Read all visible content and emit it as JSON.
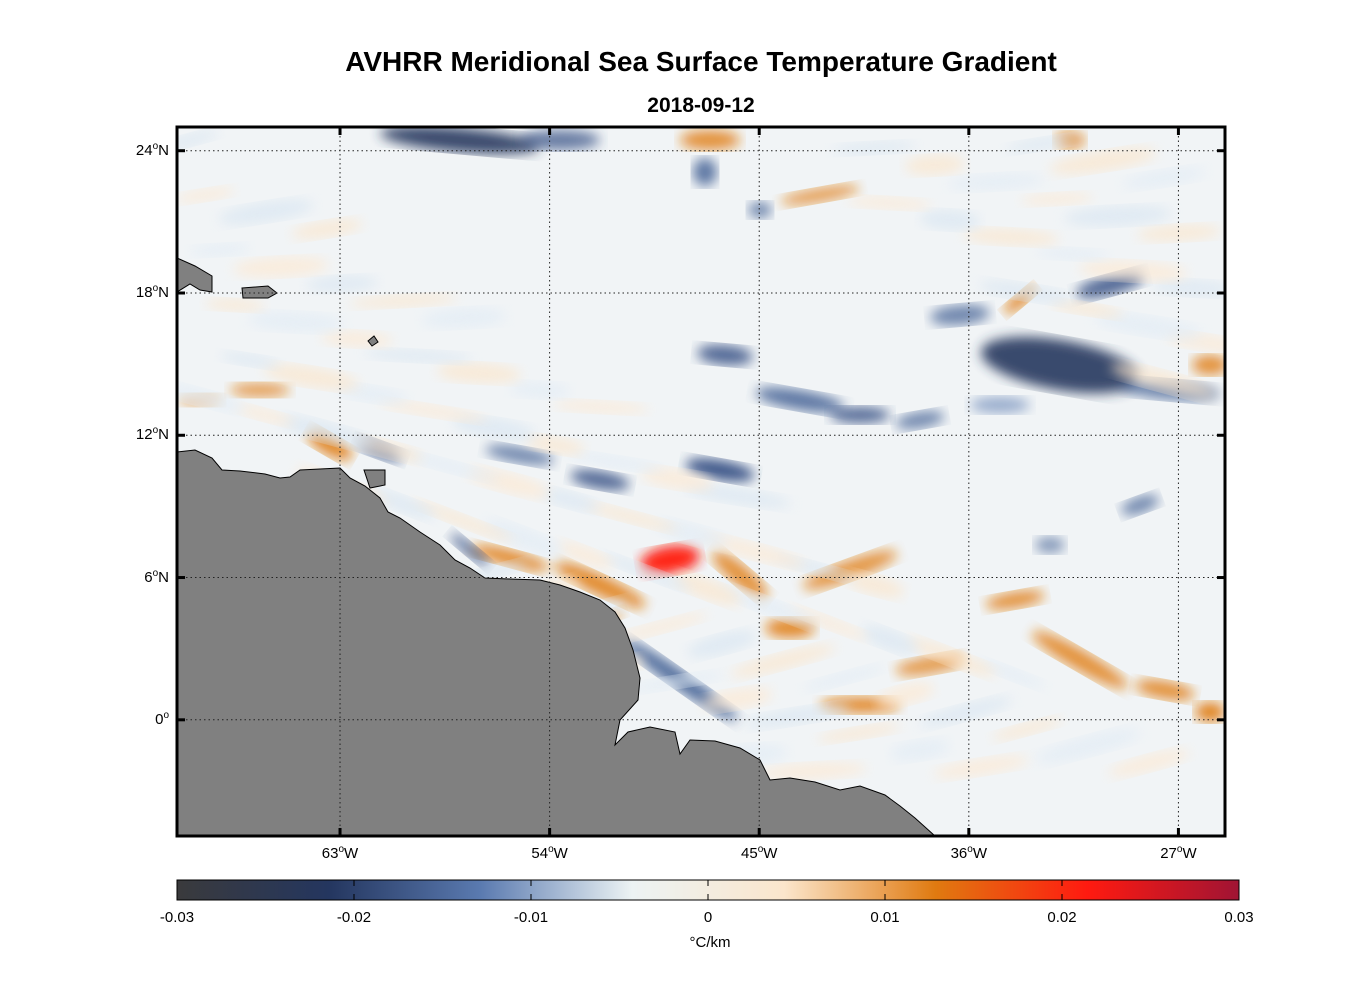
{
  "title": "AVHRR Meridional Sea Surface Temperature Gradient",
  "subtitle": "2018-09-12",
  "map": {
    "lat_labels": [
      {
        "lat": 24,
        "text": "24°N"
      },
      {
        "lat": 18,
        "text": "18°N"
      },
      {
        "lat": 12,
        "text": "12°N"
      },
      {
        "lat": 6,
        "text": "6°N"
      },
      {
        "lat": 0,
        "text": "0°"
      }
    ],
    "lon_labels": [
      {
        "lon": -63,
        "text": "63°W"
      },
      {
        "lon": -54,
        "text": "54°W"
      },
      {
        "lon": -45,
        "text": "45°W"
      },
      {
        "lon": -36,
        "text": "36°W"
      },
      {
        "lon": -27,
        "text": "27°W"
      }
    ],
    "lon_range": [
      -70,
      -25
    ],
    "lat_range": [
      -4.9,
      25
    ],
    "land_color": "#808080",
    "colorbar": {
      "ticks": [
        "-0.03",
        "-0.02",
        "-0.01",
        "0",
        "0.01",
        "0.02",
        "0.03"
      ],
      "range": [
        -0.03,
        0.03
      ],
      "unit": "°C/km",
      "colors": [
        "#3a3a3c",
        "#24365f",
        "#5a7ab0",
        "#ecf3f4",
        "#fbe6cc",
        "#e07a10",
        "#ff1a10",
        "#a01434"
      ]
    }
  }
}
